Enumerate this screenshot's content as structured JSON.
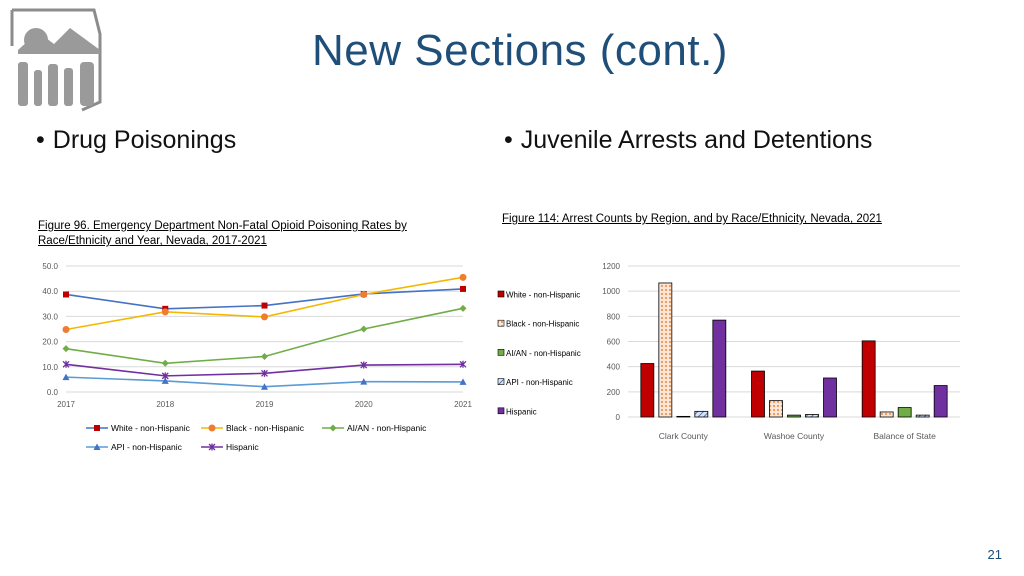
{
  "page": {
    "title": "New Sections (cont.)",
    "bullets": [
      "Drug Poisonings",
      "Juvenile Arrests and Detentions"
    ],
    "page_number": "21",
    "logo_name": "dhhs-logo"
  },
  "chart_data": [
    {
      "type": "line",
      "title": "Figure 96. Emergency Department Non-Fatal Opioid Poisoning Rates by Race/Ethnicity and Year, Nevada, 2017-2021",
      "x": [
        "2017",
        "2018",
        "2019",
        "2020",
        "2021"
      ],
      "ylim": [
        0,
        50
      ],
      "yticks": [
        "0.0",
        "10.0",
        "20.0",
        "30.0",
        "40.0",
        "50.0"
      ],
      "grid": true,
      "legend": "bottom",
      "series": [
        {
          "name": "White - non-Hispanic",
          "values": [
            38.7,
            33.0,
            34.3,
            38.9,
            40.9
          ],
          "color": "#4472C4",
          "marker_color": "#C00000",
          "marker": "square"
        },
        {
          "name": "Black - non-Hispanic",
          "values": [
            24.8,
            31.8,
            29.8,
            38.7,
            45.5
          ],
          "color": "#F5B800",
          "marker_color": "#ED7D31",
          "marker": "circle"
        },
        {
          "name": "AI/AN - non-Hispanic",
          "values": [
            17.2,
            11.4,
            14.1,
            25.0,
            33.2
          ],
          "color": "#70AD47",
          "marker_color": "#70AD47",
          "marker": "diamond"
        },
        {
          "name": "API - non-Hispanic",
          "values": [
            5.9,
            4.4,
            2.1,
            4.1,
            4.0
          ],
          "color": "#5B9BD5",
          "marker_color": "#4472C4",
          "marker": "triangle"
        },
        {
          "name": "Hispanic",
          "values": [
            11.0,
            6.4,
            7.4,
            10.7,
            11.0
          ],
          "color": "#7030A0",
          "marker_color": "#7030A0",
          "marker": "x"
        }
      ]
    },
    {
      "type": "bar",
      "title": "Figure 114: Arrest Counts by Region, and by Race/Ethnicity, Nevada, 2021",
      "categories": [
        "Clark County",
        "Washoe County",
        "Balance of State"
      ],
      "ylim": [
        0,
        1200
      ],
      "yticks": [
        "0",
        "200",
        "400",
        "600",
        "800",
        "1000",
        "1200"
      ],
      "grid": true,
      "legend": "left",
      "series": [
        {
          "name": "White - non-Hispanic",
          "values": [
            425,
            365,
            605
          ],
          "color": "#C00000",
          "pattern": "solid"
        },
        {
          "name": "Black - non-Hispanic",
          "values": [
            1065,
            130,
            40
          ],
          "color": "#F4B183",
          "pattern": "dots"
        },
        {
          "name": "AI/AN - non-Hispanic",
          "values": [
            5,
            15,
            75
          ],
          "color": "#70AD47",
          "pattern": "solid"
        },
        {
          "name": "API - non-Hispanic",
          "values": [
            45,
            20,
            15
          ],
          "color": "#8FAADC",
          "pattern": "hatch"
        },
        {
          "name": "Hispanic",
          "values": [
            770,
            310,
            250
          ],
          "color": "#7030A0",
          "pattern": "solid"
        }
      ]
    }
  ]
}
